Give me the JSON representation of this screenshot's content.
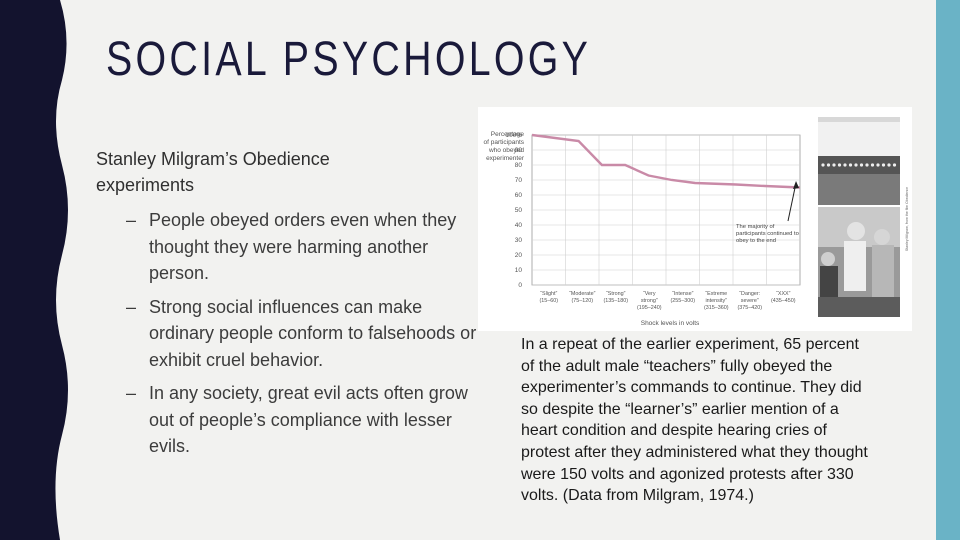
{
  "slide": {
    "title": "SOCIAL PSYCHOLOGY",
    "subtitle": "Stanley Milgram’s Obedience experiments",
    "bullets": [
      "People obeyed orders even when they thought they were harming another person.",
      "Strong social influences can make ordinary people conform to falsehoods or exhibit cruel behavior.",
      "In any society, great evil acts often grow out of people’s compliance with lesser evils."
    ],
    "bullet_marker": "–",
    "caption": "In a repeat of the earlier experiment, 65 percent of the adult male “teachers” fully obeyed the experimenter’s commands to continue. They did so despite the “learner’s” earlier mention of a heart condition and despite hearing cries of protest after they administered what they thought were 150 volts and agonized protests after 330 volts. (Data from Milgram, 1974.)"
  },
  "colors": {
    "left_band": "#13132e",
    "right_band": "#6ab3c6",
    "line": "#c98aa7",
    "background": "#f2f2f0"
  },
  "chart_data": {
    "type": "line",
    "ylabel": "Percentage of participants who obeyed experimenter",
    "xlabel": "Shock levels in volts",
    "ylim": [
      0,
      100
    ],
    "yticks": [
      "0",
      "10",
      "20",
      "30",
      "40",
      "50",
      "60",
      "70",
      "80",
      "90",
      "100%"
    ],
    "categories": [
      "“Slight” (15–60)",
      "“Moderate” (75–120)",
      "“Strong” (135–180)",
      "“Very strong” (195–240)",
      "“Intense” (255–300)",
      "“Extreme intensity” (315–360)",
      "“Danger: severe” (375–420)",
      "“XXX” (435–450)"
    ],
    "x": [
      0,
      4,
      6,
      8,
      10,
      12,
      14,
      17.5,
      20,
      23
    ],
    "values": [
      100,
      96,
      80,
      80,
      73,
      70,
      68,
      67,
      66,
      65
    ],
    "annotation": "The majority of participants continued to obey to the end",
    "grid": true
  },
  "photos": {
    "top": "shock-generator-photo",
    "bottom": "experiment-participants-photo",
    "credit": "Stanley Milgram, from the film Obedience"
  }
}
